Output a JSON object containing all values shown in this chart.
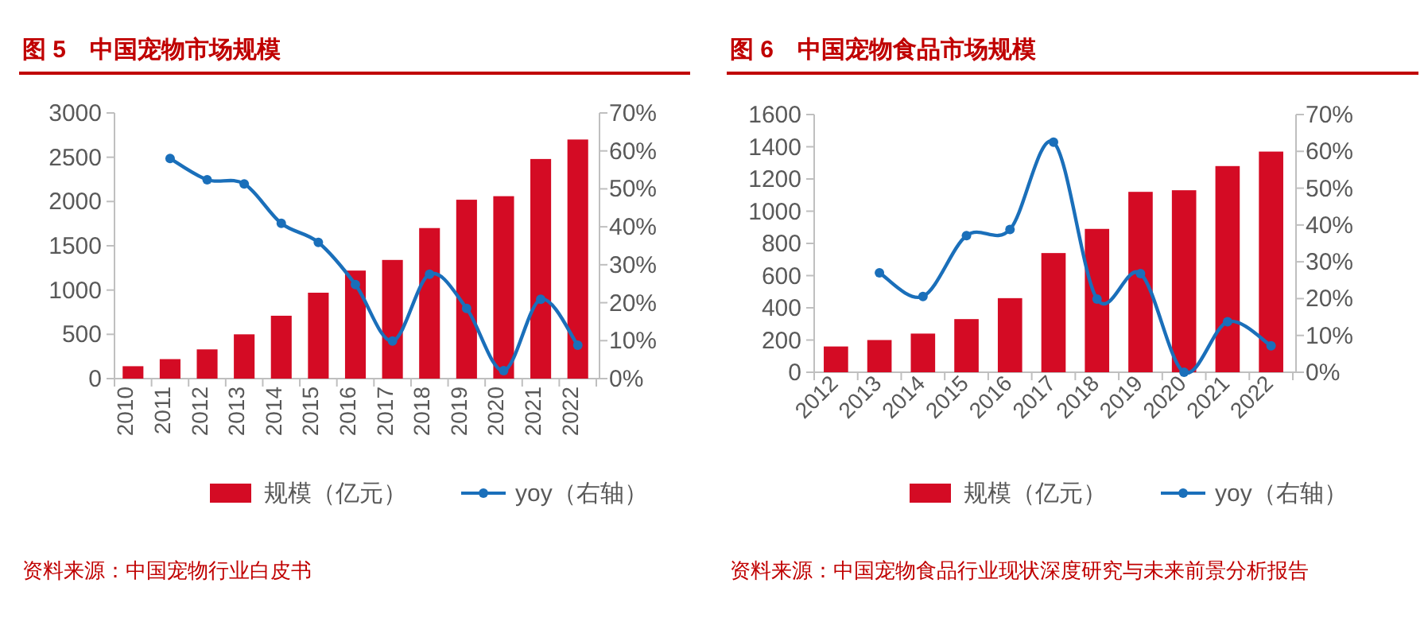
{
  "chart_data": [
    {
      "type": "bar",
      "title": "图 5　中国宠物市场规模",
      "categories": [
        "2010",
        "2011",
        "2012",
        "2013",
        "2014",
        "2015",
        "2016",
        "2017",
        "2018",
        "2019",
        "2020",
        "2021",
        "2022"
      ],
      "series": [
        {
          "name": "规模（亿元）",
          "color": "#d40b24",
          "values": [
            140,
            220,
            330,
            500,
            710,
            970,
            1220,
            1340,
            1700,
            2020,
            2060,
            2480,
            2700
          ]
        },
        {
          "name": "yoy（右轴）",
          "type": "line",
          "axis": "y2",
          "color": "#1a6fba",
          "values": [
            null,
            58,
            52.4,
            51.3,
            40.9,
            35.9,
            24.8,
            9.9,
            27.5,
            18.5,
            2.1,
            20.9,
            8.8
          ]
        }
      ],
      "ylim": [
        0,
        3000
      ],
      "yticks": [
        0,
        500,
        1000,
        1500,
        2000,
        2500,
        3000
      ],
      "y2lim": [
        0,
        70
      ],
      "y2ticks": [
        {
          "value": 0,
          "label": "0%"
        },
        {
          "value": 10,
          "label": "10%"
        },
        {
          "value": 20,
          "label": "20%"
        },
        {
          "value": 30,
          "label": "30%"
        },
        {
          "value": 40,
          "label": "40%"
        },
        {
          "value": 50,
          "label": "50%"
        },
        {
          "value": 60,
          "label": "60%"
        },
        {
          "value": 70,
          "label": "70%"
        }
      ],
      "marker": "circle",
      "grid": false,
      "legend": "bottom",
      "annotations": [
        "资料来源：中国宠物行业白皮书"
      ]
    },
    {
      "type": "bar",
      "title": "图 6　中国宠物食品市场规模",
      "categories": [
        "2012",
        "2013",
        "2014",
        "2015",
        "2016",
        "2017",
        "2018",
        "2019",
        "2020",
        "2021",
        "2022"
      ],
      "series": [
        {
          "name": "规模（亿元）",
          "color": "#d40b24",
          "values": [
            160,
            200,
            240,
            330,
            460,
            740,
            890,
            1120,
            1130,
            1280,
            1370
          ]
        },
        {
          "name": "yoy（右轴）",
          "type": "line",
          "axis": "y2",
          "color": "#1a6fba",
          "values": [
            null,
            27,
            20.6,
            37.1,
            38.8,
            62.5,
            19.9,
            26.8,
            0,
            13.7,
            7.2
          ]
        }
      ],
      "ylim": [
        0,
        1600
      ],
      "yticks": [
        0,
        200,
        400,
        600,
        800,
        1000,
        1200,
        1400,
        1600
      ],
      "y2lim": [
        0,
        70
      ],
      "y2ticks": [
        {
          "value": 0,
          "label": "0%"
        },
        {
          "value": 10,
          "label": "10%"
        },
        {
          "value": 20,
          "label": "20%"
        },
        {
          "value": 30,
          "label": "30%"
        },
        {
          "value": 40,
          "label": "40%"
        },
        {
          "value": 50,
          "label": "50%"
        },
        {
          "value": 60,
          "label": "60%"
        },
        {
          "value": 70,
          "label": "70%"
        }
      ],
      "marker": "circle",
      "grid": false,
      "legend": "bottom",
      "annotations": [
        "资料来源：中国宠物食品行业现状深度研究与未来前景分析报告"
      ]
    }
  ]
}
